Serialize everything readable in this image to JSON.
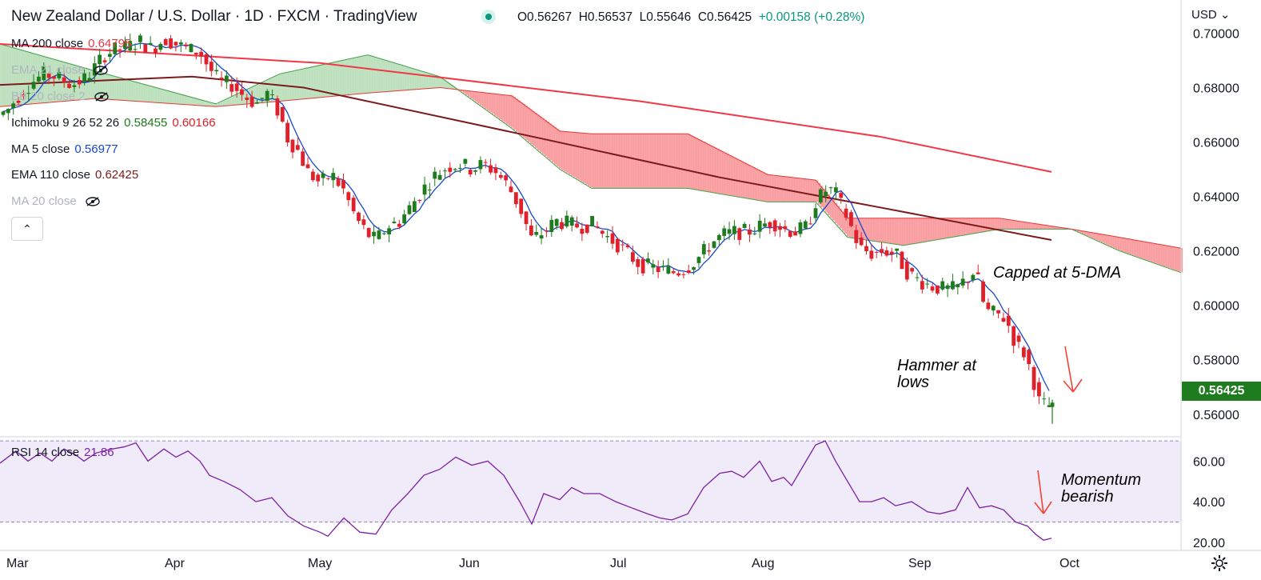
{
  "header": {
    "title": "New Zealand Dollar / U.S. Dollar · 1D · FXCM · TradingView",
    "open": "O0.56267",
    "high": "H0.56537",
    "low": "L0.55646",
    "close": "C0.56425",
    "change": "+0.00158 (+0.28%)"
  },
  "currency_label": "USD",
  "last_price_label": "0.56425",
  "legend": [
    {
      "label": "MA 200 close",
      "value": "0.64795",
      "color": "#f23645"
    },
    {
      "label": "EMA 21 close",
      "value": "",
      "color": "#9598a1",
      "hidden": true
    },
    {
      "label": "BB 20 close 2",
      "value": "",
      "color": "#9598a1",
      "hidden": true
    },
    {
      "label": "Ichimoku 9 26 52 26",
      "value": "0.58455",
      "value2": "0.60166",
      "color": "#131722"
    },
    {
      "label": "MA 5 close",
      "value": "0.56977",
      "color": "#1848cc"
    },
    {
      "label": "EMA 110 close",
      "value": "0.62425",
      "color": "#7b1a1a"
    },
    {
      "label": "MA 20 close",
      "value": "",
      "color": "#9598a1",
      "hidden": true
    }
  ],
  "rsi_legend": {
    "label": "RSI 14 close",
    "value": "21.86"
  },
  "annotations": {
    "capped": "Capped at 5-DMA",
    "hammer": "Hammer at lows",
    "momentum": "Momentum bearish"
  },
  "colors": {
    "up": "#1e7b1e",
    "down": "#e0202a",
    "ma200": "#f23645",
    "ema110": "#7b1a1a",
    "ma5": "#1848cc",
    "cloud_bull": "#a5d6a7",
    "cloud_bear": "#f77c80",
    "rsi": "#7e1fa5"
  },
  "chart_data": [
    {
      "type": "candlestick",
      "title": "New Zealand Dollar / U.S. Dollar · 1D · FXCM",
      "x_labels": [
        "Mar",
        "Apr",
        "May",
        "Jun",
        "Jul",
        "Aug",
        "Sep",
        "Oct"
      ],
      "y_ticks": [
        "0.70000",
        "0.68000",
        "0.66000",
        "0.64000",
        "0.62000",
        "0.60000",
        "0.58000",
        "0.56000"
      ],
      "ylim": [
        0.552,
        0.701
      ],
      "price_path": [
        [
          0,
          0.67
        ],
        [
          10,
          0.672
        ],
        [
          20,
          0.676
        ],
        [
          30,
          0.679
        ],
        [
          40,
          0.682
        ],
        [
          55,
          0.685
        ],
        [
          70,
          0.684
        ],
        [
          90,
          0.681
        ],
        [
          105,
          0.683
        ],
        [
          115,
          0.686
        ],
        [
          130,
          0.692
        ],
        [
          145,
          0.694
        ],
        [
          160,
          0.695
        ],
        [
          175,
          0.697
        ],
        [
          190,
          0.694
        ],
        [
          205,
          0.698
        ],
        [
          220,
          0.696
        ],
        [
          235,
          0.694
        ],
        [
          250,
          0.693
        ],
        [
          262,
          0.687
        ],
        [
          275,
          0.682
        ],
        [
          290,
          0.681
        ],
        [
          305,
          0.677
        ],
        [
          320,
          0.674
        ],
        [
          335,
          0.678
        ],
        [
          350,
          0.67
        ],
        [
          360,
          0.661
        ],
        [
          372,
          0.657
        ],
        [
          385,
          0.649
        ],
        [
          400,
          0.645
        ],
        [
          415,
          0.648
        ],
        [
          430,
          0.642
        ],
        [
          445,
          0.632
        ],
        [
          460,
          0.626
        ],
        [
          470,
          0.624
        ],
        [
          485,
          0.629
        ],
        [
          500,
          0.631
        ],
        [
          515,
          0.637
        ],
        [
          530,
          0.643
        ],
        [
          545,
          0.648
        ],
        [
          560,
          0.651
        ],
        [
          575,
          0.652
        ],
        [
          590,
          0.65
        ],
        [
          605,
          0.652
        ],
        [
          620,
          0.649
        ],
        [
          635,
          0.644
        ],
        [
          650,
          0.636
        ],
        [
          665,
          0.624
        ],
        [
          680,
          0.627
        ],
        [
          695,
          0.631
        ],
        [
          710,
          0.63
        ],
        [
          725,
          0.629
        ],
        [
          740,
          0.63
        ],
        [
          755,
          0.626
        ],
        [
          770,
          0.623
        ],
        [
          785,
          0.619
        ],
        [
          800,
          0.615
        ],
        [
          815,
          0.614
        ],
        [
          830,
          0.613
        ],
        [
          845,
          0.612
        ],
        [
          860,
          0.614
        ],
        [
          875,
          0.618
        ],
        [
          890,
          0.623
        ],
        [
          905,
          0.626
        ],
        [
          920,
          0.627
        ],
        [
          935,
          0.627
        ],
        [
          950,
          0.629
        ],
        [
          965,
          0.631
        ],
        [
          980,
          0.628
        ],
        [
          995,
          0.627
        ],
        [
          1010,
          0.629
        ],
        [
          1020,
          0.638
        ],
        [
          1035,
          0.643
        ],
        [
          1045,
          0.641
        ],
        [
          1060,
          0.632
        ],
        [
          1075,
          0.621
        ],
        [
          1090,
          0.619
        ],
        [
          1105,
          0.62
        ],
        [
          1120,
          0.619
        ],
        [
          1135,
          0.612
        ],
        [
          1150,
          0.609
        ],
        [
          1165,
          0.607
        ],
        [
          1180,
          0.606
        ],
        [
          1195,
          0.606
        ],
        [
          1210,
          0.61
        ],
        [
          1220,
          0.613
        ],
        [
          1232,
          0.598
        ],
        [
          1245,
          0.597
        ],
        [
          1258,
          0.595
        ],
        [
          1270,
          0.586
        ],
        [
          1282,
          0.582
        ],
        [
          1292,
          0.573
        ],
        [
          1300,
          0.564
        ],
        [
          1310,
          0.563
        ],
        [
          1318,
          0.564
        ]
      ],
      "last": {
        "open": 0.56267,
        "high": 0.56537,
        "low": 0.55646,
        "close": 0.56425
      },
      "overlays": {
        "ma200": [
          [
            0,
            0.696
          ],
          [
            400,
            0.689
          ],
          [
            800,
            0.675
          ],
          [
            1100,
            0.662
          ],
          [
            1315,
            0.649
          ]
        ],
        "ema110": [
          [
            0,
            0.681
          ],
          [
            240,
            0.684
          ],
          [
            380,
            0.68
          ],
          [
            650,
            0.663
          ],
          [
            900,
            0.647
          ],
          [
            1100,
            0.636
          ],
          [
            1315,
            0.624
          ]
        ],
        "ichimoku_span_a": [
          [
            0,
            0.696
          ],
          [
            120,
            0.686
          ],
          [
            270,
            0.674
          ],
          [
            350,
            0.685
          ],
          [
            460,
            0.692
          ],
          [
            550,
            0.684
          ],
          [
            640,
            0.665
          ],
          [
            700,
            0.65
          ],
          [
            740,
            0.643
          ],
          [
            860,
            0.643
          ],
          [
            960,
            0.638
          ],
          [
            1020,
            0.638
          ],
          [
            1060,
            0.625
          ],
          [
            1130,
            0.622
          ],
          [
            1250,
            0.628
          ],
          [
            1340,
            0.628
          ],
          [
            1400,
            0.62
          ],
          [
            1477,
            0.612
          ]
        ],
        "ichimoku_span_b": [
          [
            0,
            0.673
          ],
          [
            120,
            0.676
          ],
          [
            270,
            0.673
          ],
          [
            350,
            0.675
          ],
          [
            460,
            0.678
          ],
          [
            550,
            0.68
          ],
          [
            640,
            0.677
          ],
          [
            700,
            0.664
          ],
          [
            740,
            0.663
          ],
          [
            860,
            0.663
          ],
          [
            960,
            0.648
          ],
          [
            1020,
            0.646
          ],
          [
            1060,
            0.632
          ],
          [
            1130,
            0.632
          ],
          [
            1250,
            0.632
          ],
          [
            1340,
            0.628
          ],
          [
            1400,
            0.625
          ],
          [
            1477,
            0.621
          ]
        ],
        "ma5": "5-day moving average of the daily closes"
      }
    },
    {
      "type": "line",
      "title": "RSI 14 close",
      "y_ticks": [
        "60.00",
        "40.00",
        "20.00"
      ],
      "ylim": [
        16,
        72
      ],
      "bands": [
        30,
        70
      ],
      "series": [
        {
          "name": "RSI 14 close",
          "values": [
            [
              0,
              59
            ],
            [
              20,
              65
            ],
            [
              35,
              60
            ],
            [
              50,
              64
            ],
            [
              65,
              60
            ],
            [
              80,
              66
            ],
            [
              95,
              63
            ],
            [
              105,
              60
            ],
            [
              120,
              64
            ],
            [
              140,
              66
            ],
            [
              155,
              67
            ],
            [
              170,
              69
            ],
            [
              185,
              60
            ],
            [
              205,
              66
            ],
            [
              220,
              62
            ],
            [
              235,
              65
            ],
            [
              250,
              60
            ],
            [
              262,
              53
            ],
            [
              280,
              50
            ],
            [
              300,
              46
            ],
            [
              320,
              40
            ],
            [
              340,
              42
            ],
            [
              360,
              33
            ],
            [
              380,
              28
            ],
            [
              400,
              25
            ],
            [
              410,
              23
            ],
            [
              430,
              32
            ],
            [
              450,
              25
            ],
            [
              470,
              24
            ],
            [
              490,
              36
            ],
            [
              510,
              44
            ],
            [
              530,
              53
            ],
            [
              550,
              56
            ],
            [
              570,
              62
            ],
            [
              590,
              58
            ],
            [
              610,
              60
            ],
            [
              630,
              53
            ],
            [
              650,
              40
            ],
            [
              665,
              29
            ],
            [
              680,
              44
            ],
            [
              700,
              41
            ],
            [
              715,
              47
            ],
            [
              730,
              44
            ],
            [
              750,
              44
            ],
            [
              770,
              40
            ],
            [
              790,
              37
            ],
            [
              810,
              34
            ],
            [
              825,
              32
            ],
            [
              840,
              31
            ],
            [
              860,
              34
            ],
            [
              880,
              47
            ],
            [
              900,
              54
            ],
            [
              915,
              55
            ],
            [
              930,
              52
            ],
            [
              950,
              60
            ],
            [
              965,
              50
            ],
            [
              980,
              52
            ],
            [
              990,
              48
            ],
            [
              1005,
              58
            ],
            [
              1020,
              68
            ],
            [
              1032,
              70
            ],
            [
              1045,
              60
            ],
            [
              1060,
              50
            ],
            [
              1075,
              40
            ],
            [
              1090,
              40
            ],
            [
              1105,
              42
            ],
            [
              1120,
              38
            ],
            [
              1140,
              40
            ],
            [
              1160,
              35
            ],
            [
              1175,
              34
            ],
            [
              1195,
              36
            ],
            [
              1210,
              47
            ],
            [
              1225,
              37
            ],
            [
              1240,
              38
            ],
            [
              1255,
              36
            ],
            [
              1270,
              30
            ],
            [
              1285,
              28
            ],
            [
              1295,
              24
            ],
            [
              1305,
              21
            ],
            [
              1315,
              22
            ]
          ]
        }
      ]
    }
  ],
  "x_axis_labels": [
    "Mar",
    "Apr",
    "May",
    "Jun",
    "Jul",
    "Aug",
    "Sep",
    "Oct"
  ],
  "price_axis_labels": [
    "0.70000",
    "0.68000",
    "0.66000",
    "0.64000",
    "0.62000",
    "0.60000",
    "0.58000",
    "0.56000"
  ],
  "rsi_axis_labels": [
    "60.00",
    "40.00",
    "20.00"
  ]
}
